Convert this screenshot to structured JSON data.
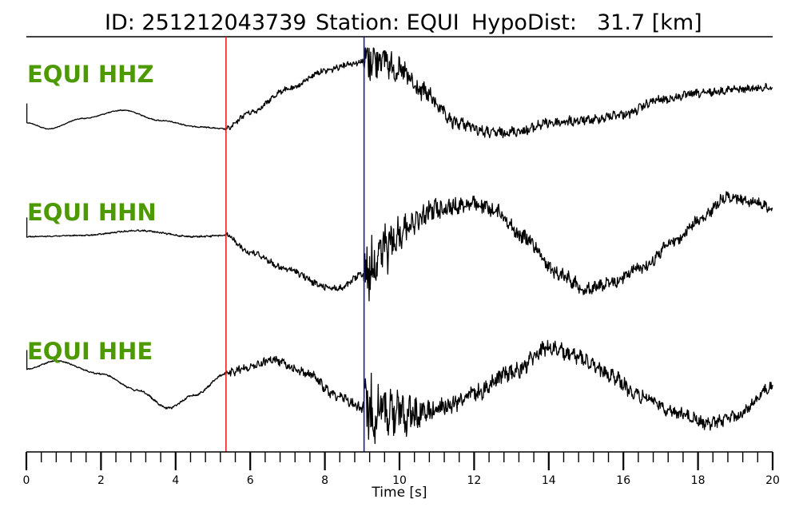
{
  "chart_data": {
    "type": "line",
    "title": {
      "id_label": "ID: 251212043739",
      "station_label": "Station: EQUI",
      "dist_label": "HypoDist:",
      "dist_value": "31.7 [km]"
    },
    "xlabel": "Time [s]",
    "xlim": [
      0,
      20
    ],
    "x_ticks": [
      0,
      2,
      4,
      6,
      8,
      10,
      12,
      14,
      16,
      18,
      20
    ],
    "x_tick_labels": [
      "0",
      "2",
      "4",
      "6",
      "8",
      "10",
      "12",
      "14",
      "16",
      "18",
      "20"
    ],
    "minor_tick_step": 0.4,
    "grid": false,
    "picks": [
      {
        "phase": "P",
        "time": 5.35,
        "color": "#e8231f"
      },
      {
        "phase": "S",
        "time": 9.05,
        "color": "#1a1aaa"
      }
    ],
    "colors": {
      "label": "#4c9900",
      "trace": "#000000"
    },
    "series": [
      {
        "name": "EQUI HHZ",
        "envelope": [
          [
            0,
            0.72
          ],
          [
            0.6,
            0.78
          ],
          [
            1.5,
            0.68
          ],
          [
            2.6,
            0.6
          ],
          [
            3.6,
            0.7
          ],
          [
            4.6,
            0.76
          ],
          [
            5.35,
            0.78
          ],
          [
            6,
            0.62
          ],
          [
            7,
            0.4
          ],
          [
            8,
            0.22
          ],
          [
            8.7,
            0.15
          ],
          [
            9.05,
            0.13
          ],
          [
            9.5,
            0.1
          ],
          [
            10,
            0.22
          ],
          [
            10.6,
            0.42
          ],
          [
            11.5,
            0.72
          ],
          [
            12.5,
            0.82
          ],
          [
            13.3,
            0.8
          ],
          [
            14,
            0.72
          ],
          [
            15,
            0.7
          ],
          [
            16,
            0.64
          ],
          [
            17,
            0.5
          ],
          [
            18,
            0.44
          ],
          [
            19,
            0.4
          ],
          [
            20,
            0.38
          ]
        ],
        "noise": [
          [
            0,
            0.003
          ],
          [
            5.3,
            0.005
          ],
          [
            5.4,
            0.02
          ],
          [
            9,
            0.025
          ],
          [
            9.1,
            0.18
          ],
          [
            10,
            0.1
          ],
          [
            11,
            0.06
          ],
          [
            12,
            0.045
          ],
          [
            14,
            0.04
          ],
          [
            20,
            0.03
          ]
        ]
      },
      {
        "name": "EQUI HHN",
        "envelope": [
          [
            0,
            0.45
          ],
          [
            1.5,
            0.44
          ],
          [
            3,
            0.4
          ],
          [
            4.5,
            0.45
          ],
          [
            5.35,
            0.44
          ],
          [
            6,
            0.58
          ],
          [
            7,
            0.72
          ],
          [
            8,
            0.86
          ],
          [
            8.4,
            0.88
          ],
          [
            9.05,
            0.75
          ],
          [
            9.6,
            0.55
          ],
          [
            10.3,
            0.34
          ],
          [
            11,
            0.22
          ],
          [
            12,
            0.18
          ],
          [
            12.6,
            0.24
          ],
          [
            13.3,
            0.45
          ],
          [
            14.3,
            0.76
          ],
          [
            15,
            0.88
          ],
          [
            15.6,
            0.84
          ],
          [
            16.5,
            0.7
          ],
          [
            17.4,
            0.48
          ],
          [
            18,
            0.32
          ],
          [
            18.8,
            0.12
          ],
          [
            19.5,
            0.16
          ],
          [
            20,
            0.22
          ]
        ],
        "noise": [
          [
            0,
            0.004
          ],
          [
            5.3,
            0.006
          ],
          [
            5.4,
            0.02
          ],
          [
            9,
            0.025
          ],
          [
            9.1,
            0.2
          ],
          [
            9.6,
            0.16
          ],
          [
            10.5,
            0.08
          ],
          [
            12,
            0.05
          ],
          [
            20,
            0.035
          ]
        ]
      },
      {
        "name": "EQUI HHE",
        "envelope": [
          [
            0,
            0.3
          ],
          [
            0.8,
            0.23
          ],
          [
            2,
            0.34
          ],
          [
            3,
            0.48
          ],
          [
            3.8,
            0.63
          ],
          [
            4.5,
            0.52
          ],
          [
            5.35,
            0.34
          ],
          [
            6,
            0.28
          ],
          [
            6.6,
            0.22
          ],
          [
            7.5,
            0.33
          ],
          [
            8.3,
            0.52
          ],
          [
            9.05,
            0.63
          ],
          [
            9.6,
            0.65
          ],
          [
            10.5,
            0.68
          ],
          [
            11.2,
            0.62
          ],
          [
            12,
            0.5
          ],
          [
            13,
            0.33
          ],
          [
            14,
            0.12
          ],
          [
            14.8,
            0.2
          ],
          [
            15.5,
            0.33
          ],
          [
            16.5,
            0.53
          ],
          [
            17.5,
            0.68
          ],
          [
            18.3,
            0.76
          ],
          [
            19,
            0.7
          ],
          [
            20,
            0.45
          ]
        ],
        "noise": [
          [
            0,
            0.004
          ],
          [
            5.3,
            0.008
          ],
          [
            5.4,
            0.03
          ],
          [
            9,
            0.035
          ],
          [
            9.1,
            0.24
          ],
          [
            10,
            0.16
          ],
          [
            11,
            0.07
          ],
          [
            12,
            0.06
          ],
          [
            20,
            0.04
          ]
        ]
      }
    ]
  }
}
